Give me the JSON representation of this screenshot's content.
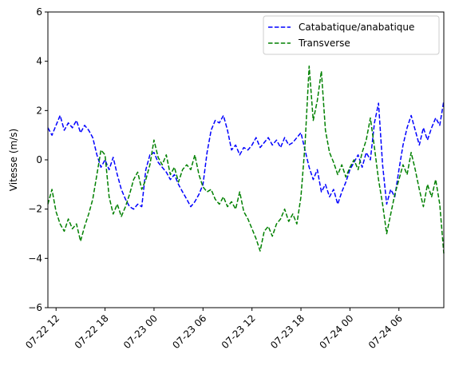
{
  "chart_data": {
    "type": "line",
    "title": "",
    "xlabel": "",
    "ylabel": "Vitesse (m/s)",
    "ylim": [
      -6,
      6
    ],
    "xlim": [
      "2022-07-22 11:00",
      "2022-07-24 11:30"
    ],
    "yticks": [
      -6,
      -4,
      -2,
      0,
      2,
      4,
      6
    ],
    "xticks": [
      {
        "label": "07-22 12",
        "t": "2022-07-22 12:00"
      },
      {
        "label": "07-22 18",
        "t": "2022-07-22 18:00"
      },
      {
        "label": "07-23 00",
        "t": "2022-07-23 00:00"
      },
      {
        "label": "07-23 06",
        "t": "2022-07-23 06:00"
      },
      {
        "label": "07-23 12",
        "t": "2022-07-23 12:00"
      },
      {
        "label": "07-23 18",
        "t": "2022-07-23 18:00"
      },
      {
        "label": "07-24 00",
        "t": "2022-07-24 00:00"
      },
      {
        "label": "07-24 06",
        "t": "2022-07-24 06:00"
      }
    ],
    "grid": false,
    "legend_position": "top-right",
    "series": [
      {
        "name": "Catabatique/anabatique",
        "color": "#0000ff",
        "style": "dashed",
        "points": [
          [
            "2022-07-22 11:00",
            1.3
          ],
          [
            "2022-07-22 11:30",
            1.0
          ],
          [
            "2022-07-22 12:00",
            1.4
          ],
          [
            "2022-07-22 12:30",
            1.8
          ],
          [
            "2022-07-22 13:00",
            1.2
          ],
          [
            "2022-07-22 13:30",
            1.5
          ],
          [
            "2022-07-22 14:00",
            1.3
          ],
          [
            "2022-07-22 14:30",
            1.6
          ],
          [
            "2022-07-22 15:00",
            1.1
          ],
          [
            "2022-07-22 15:30",
            1.4
          ],
          [
            "2022-07-22 16:00",
            1.2
          ],
          [
            "2022-07-22 16:30",
            0.9
          ],
          [
            "2022-07-22 17:00",
            0.2
          ],
          [
            "2022-07-22 17:30",
            -0.3
          ],
          [
            "2022-07-22 18:00",
            0.0
          ],
          [
            "2022-07-22 18:30",
            -0.4
          ],
          [
            "2022-07-22 19:00",
            0.1
          ],
          [
            "2022-07-22 19:30",
            -0.6
          ],
          [
            "2022-07-22 20:00",
            -1.2
          ],
          [
            "2022-07-22 20:30",
            -1.6
          ],
          [
            "2022-07-22 21:00",
            -1.9
          ],
          [
            "2022-07-22 21:30",
            -2.0
          ],
          [
            "2022-07-22 22:00",
            -1.8
          ],
          [
            "2022-07-22 22:30",
            -1.9
          ],
          [
            "2022-07-22 23:00",
            -0.4
          ],
          [
            "2022-07-22 23:30",
            0.2
          ],
          [
            "2022-07-23 00:00",
            0.3
          ],
          [
            "2022-07-23 00:30",
            -0.1
          ],
          [
            "2022-07-23 01:00",
            -0.3
          ],
          [
            "2022-07-23 01:30",
            -0.5
          ],
          [
            "2022-07-23 02:00",
            -0.8
          ],
          [
            "2022-07-23 02:30",
            -0.6
          ],
          [
            "2022-07-23 03:00",
            -1.0
          ],
          [
            "2022-07-23 03:30",
            -1.3
          ],
          [
            "2022-07-23 04:00",
            -1.6
          ],
          [
            "2022-07-23 04:30",
            -1.9
          ],
          [
            "2022-07-23 05:00",
            -1.7
          ],
          [
            "2022-07-23 05:30",
            -1.4
          ],
          [
            "2022-07-23 06:00",
            -1.0
          ],
          [
            "2022-07-23 06:30",
            0.3
          ],
          [
            "2022-07-23 07:00",
            1.2
          ],
          [
            "2022-07-23 07:30",
            1.6
          ],
          [
            "2022-07-23 08:00",
            1.5
          ],
          [
            "2022-07-23 08:30",
            1.8
          ],
          [
            "2022-07-23 09:00",
            1.2
          ],
          [
            "2022-07-23 09:30",
            0.4
          ],
          [
            "2022-07-23 10:00",
            0.6
          ],
          [
            "2022-07-23 10:30",
            0.2
          ],
          [
            "2022-07-23 11:00",
            0.5
          ],
          [
            "2022-07-23 11:30",
            0.4
          ],
          [
            "2022-07-23 12:00",
            0.6
          ],
          [
            "2022-07-23 12:30",
            0.9
          ],
          [
            "2022-07-23 13:00",
            0.5
          ],
          [
            "2022-07-23 13:30",
            0.7
          ],
          [
            "2022-07-23 14:00",
            0.9
          ],
          [
            "2022-07-23 14:30",
            0.6
          ],
          [
            "2022-07-23 15:00",
            0.8
          ],
          [
            "2022-07-23 15:30",
            0.5
          ],
          [
            "2022-07-23 16:00",
            0.9
          ],
          [
            "2022-07-23 16:30",
            0.6
          ],
          [
            "2022-07-23 17:00",
            0.7
          ],
          [
            "2022-07-23 17:30",
            0.9
          ],
          [
            "2022-07-23 18:00",
            1.1
          ],
          [
            "2022-07-23 18:30",
            0.4
          ],
          [
            "2022-07-23 19:00",
            -0.3
          ],
          [
            "2022-07-23 19:30",
            -0.8
          ],
          [
            "2022-07-23 20:00",
            -0.4
          ],
          [
            "2022-07-23 20:30",
            -1.3
          ],
          [
            "2022-07-23 21:00",
            -1.0
          ],
          [
            "2022-07-23 21:30",
            -1.5
          ],
          [
            "2022-07-23 22:00",
            -1.2
          ],
          [
            "2022-07-23 22:30",
            -1.8
          ],
          [
            "2022-07-23 23:00",
            -1.3
          ],
          [
            "2022-07-23 23:30",
            -0.9
          ],
          [
            "2022-07-24 00:00",
            -0.4
          ],
          [
            "2022-07-24 00:30",
            -0.1
          ],
          [
            "2022-07-24 01:00",
            0.2
          ],
          [
            "2022-07-24 01:30",
            -0.3
          ],
          [
            "2022-07-24 02:00",
            0.3
          ],
          [
            "2022-07-24 02:30",
            0.0
          ],
          [
            "2022-07-24 03:00",
            1.5
          ],
          [
            "2022-07-24 03:30",
            2.3
          ],
          [
            "2022-07-24 04:00",
            -0.2
          ],
          [
            "2022-07-24 04:30",
            -1.8
          ],
          [
            "2022-07-24 05:00",
            -1.2
          ],
          [
            "2022-07-24 05:30",
            -1.5
          ],
          [
            "2022-07-24 06:00",
            -0.4
          ],
          [
            "2022-07-24 06:30",
            0.6
          ],
          [
            "2022-07-24 07:00",
            1.3
          ],
          [
            "2022-07-24 07:30",
            1.8
          ],
          [
            "2022-07-24 08:00",
            1.2
          ],
          [
            "2022-07-24 08:30",
            0.6
          ],
          [
            "2022-07-24 09:00",
            1.3
          ],
          [
            "2022-07-24 09:30",
            0.8
          ],
          [
            "2022-07-24 10:00",
            1.3
          ],
          [
            "2022-07-24 10:30",
            1.7
          ],
          [
            "2022-07-24 11:00",
            1.4
          ],
          [
            "2022-07-24 11:30",
            2.4
          ]
        ]
      },
      {
        "name": "Transverse",
        "color": "#008000",
        "style": "dashed",
        "points": [
          [
            "2022-07-22 11:00",
            -1.8
          ],
          [
            "2022-07-22 11:30",
            -1.2
          ],
          [
            "2022-07-22 12:00",
            -2.1
          ],
          [
            "2022-07-22 12:30",
            -2.6
          ],
          [
            "2022-07-22 13:00",
            -2.9
          ],
          [
            "2022-07-22 13:30",
            -2.4
          ],
          [
            "2022-07-22 14:00",
            -2.8
          ],
          [
            "2022-07-22 14:30",
            -2.6
          ],
          [
            "2022-07-22 15:00",
            -3.3
          ],
          [
            "2022-07-22 15:30",
            -2.7
          ],
          [
            "2022-07-22 16:00",
            -2.2
          ],
          [
            "2022-07-22 16:30",
            -1.6
          ],
          [
            "2022-07-22 17:00",
            -0.6
          ],
          [
            "2022-07-22 17:30",
            0.4
          ],
          [
            "2022-07-22 18:00",
            0.2
          ],
          [
            "2022-07-22 18:30",
            -1.5
          ],
          [
            "2022-07-22 19:00",
            -2.2
          ],
          [
            "2022-07-22 19:30",
            -1.8
          ],
          [
            "2022-07-22 20:00",
            -2.3
          ],
          [
            "2022-07-22 20:30",
            -1.9
          ],
          [
            "2022-07-22 21:00",
            -1.4
          ],
          [
            "2022-07-22 21:30",
            -0.8
          ],
          [
            "2022-07-22 22:00",
            -0.5
          ],
          [
            "2022-07-22 22:30",
            -1.2
          ],
          [
            "2022-07-22 23:00",
            -0.8
          ],
          [
            "2022-07-22 23:30",
            -0.2
          ],
          [
            "2022-07-23 00:00",
            0.8
          ],
          [
            "2022-07-23 00:30",
            0.1
          ],
          [
            "2022-07-23 01:00",
            -0.2
          ],
          [
            "2022-07-23 01:30",
            0.2
          ],
          [
            "2022-07-23 02:00",
            -0.6
          ],
          [
            "2022-07-23 02:30",
            -0.3
          ],
          [
            "2022-07-23 03:00",
            -0.9
          ],
          [
            "2022-07-23 03:30",
            -0.4
          ],
          [
            "2022-07-23 04:00",
            -0.2
          ],
          [
            "2022-07-23 04:30",
            -0.4
          ],
          [
            "2022-07-23 05:00",
            0.2
          ],
          [
            "2022-07-23 05:30",
            -0.6
          ],
          [
            "2022-07-23 06:00",
            -1.1
          ],
          [
            "2022-07-23 06:30",
            -1.3
          ],
          [
            "2022-07-23 07:00",
            -1.2
          ],
          [
            "2022-07-23 07:30",
            -1.6
          ],
          [
            "2022-07-23 08:00",
            -1.8
          ],
          [
            "2022-07-23 08:30",
            -1.5
          ],
          [
            "2022-07-23 09:00",
            -1.9
          ],
          [
            "2022-07-23 09:30",
            -1.7
          ],
          [
            "2022-07-23 10:00",
            -2.0
          ],
          [
            "2022-07-23 10:30",
            -1.3
          ],
          [
            "2022-07-23 11:00",
            -2.1
          ],
          [
            "2022-07-23 11:30",
            -2.4
          ],
          [
            "2022-07-23 12:00",
            -2.8
          ],
          [
            "2022-07-23 12:30",
            -3.2
          ],
          [
            "2022-07-23 13:00",
            -3.7
          ],
          [
            "2022-07-23 13:30",
            -2.9
          ],
          [
            "2022-07-23 14:00",
            -2.7
          ],
          [
            "2022-07-23 14:30",
            -3.1
          ],
          [
            "2022-07-23 15:00",
            -2.6
          ],
          [
            "2022-07-23 15:30",
            -2.4
          ],
          [
            "2022-07-23 16:00",
            -2.0
          ],
          [
            "2022-07-23 16:30",
            -2.5
          ],
          [
            "2022-07-23 17:00",
            -2.2
          ],
          [
            "2022-07-23 17:30",
            -2.6
          ],
          [
            "2022-07-23 18:00",
            -1.5
          ],
          [
            "2022-07-23 18:30",
            0.6
          ],
          [
            "2022-07-23 19:00",
            3.8
          ],
          [
            "2022-07-23 19:30",
            1.6
          ],
          [
            "2022-07-23 20:00",
            2.4
          ],
          [
            "2022-07-23 20:30",
            3.6
          ],
          [
            "2022-07-23 21:00",
            1.2
          ],
          [
            "2022-07-23 21:30",
            0.3
          ],
          [
            "2022-07-23 22:00",
            -0.1
          ],
          [
            "2022-07-23 22:30",
            -0.6
          ],
          [
            "2022-07-23 23:00",
            -0.2
          ],
          [
            "2022-07-23 23:30",
            -0.7
          ],
          [
            "2022-07-24 00:00",
            -0.3
          ],
          [
            "2022-07-24 00:30",
            0.0
          ],
          [
            "2022-07-24 01:00",
            -0.4
          ],
          [
            "2022-07-24 01:30",
            0.3
          ],
          [
            "2022-07-24 02:00",
            0.8
          ],
          [
            "2022-07-24 02:30",
            1.7
          ],
          [
            "2022-07-24 03:00",
            0.5
          ],
          [
            "2022-07-24 03:30",
            -0.8
          ],
          [
            "2022-07-24 04:00",
            -1.8
          ],
          [
            "2022-07-24 04:30",
            -3.0
          ],
          [
            "2022-07-24 05:00",
            -2.2
          ],
          [
            "2022-07-24 05:30",
            -1.4
          ],
          [
            "2022-07-24 06:00",
            -0.8
          ],
          [
            "2022-07-24 06:30",
            -0.2
          ],
          [
            "2022-07-24 07:00",
            -0.6
          ],
          [
            "2022-07-24 07:30",
            0.3
          ],
          [
            "2022-07-24 08:00",
            -0.4
          ],
          [
            "2022-07-24 08:30",
            -1.2
          ],
          [
            "2022-07-24 09:00",
            -1.9
          ],
          [
            "2022-07-24 09:30",
            -1.0
          ],
          [
            "2022-07-24 10:00",
            -1.5
          ],
          [
            "2022-07-24 10:30",
            -0.8
          ],
          [
            "2022-07-24 11:00",
            -1.8
          ],
          [
            "2022-07-24 11:30",
            -3.8
          ]
        ]
      }
    ]
  }
}
